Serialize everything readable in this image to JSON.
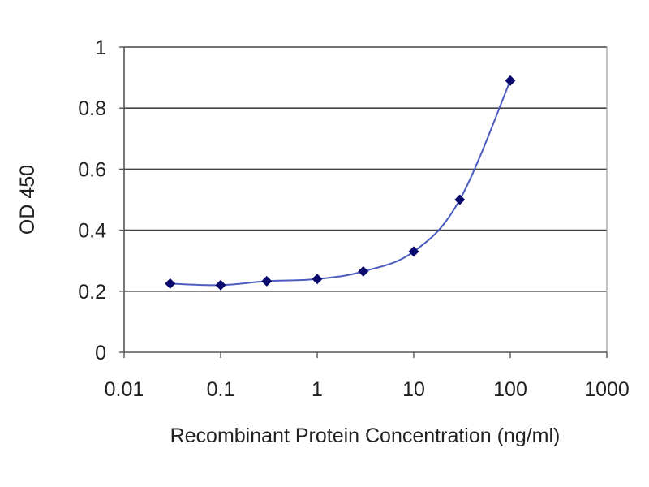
{
  "chart_data": {
    "type": "line",
    "title": "",
    "xlabel": "Recombinant Protein Concentration (ng/ml)",
    "ylabel": "OD 450",
    "x_scale": "log",
    "xlim": [
      0.01,
      1000
    ],
    "ylim": [
      0,
      1
    ],
    "x_ticks": [
      0.01,
      0.1,
      1,
      10,
      100,
      1000
    ],
    "x_tick_labels": [
      "0.01",
      "0.1",
      "1",
      "10",
      "100",
      "1000"
    ],
    "y_ticks": [
      0,
      0.2,
      0.4,
      0.6,
      0.8,
      1
    ],
    "y_tick_labels": [
      "0",
      "0.2",
      "0.4",
      "0.6",
      "0.8",
      "1"
    ],
    "grid": "horizontal",
    "legend": "none",
    "series": [
      {
        "x": [
          0.03,
          0.1,
          0.3,
          1,
          3,
          10,
          30,
          100
        ],
        "y": [
          0.225,
          0.22,
          0.233,
          0.24,
          0.265,
          0.33,
          0.5,
          0.89
        ]
      }
    ],
    "colors": {
      "line": "#4b5dbf",
      "marker": "#0a0a6e",
      "grid": "#444444",
      "axis": "#555555",
      "text": "#222222"
    }
  }
}
